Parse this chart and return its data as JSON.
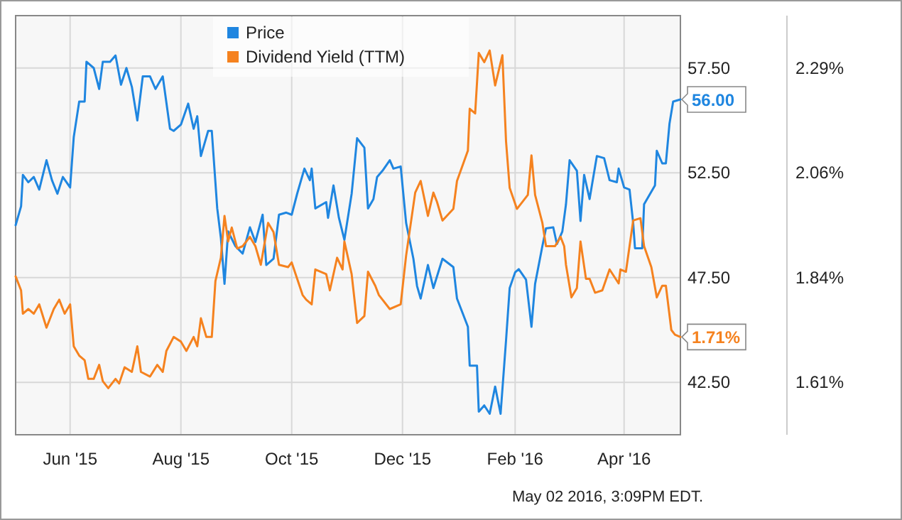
{
  "chart_data": {
    "type": "line",
    "xlim": [
      "2015-05-02",
      "2016-05-02"
    ],
    "xticks": [
      {
        "value": "2015-06-01",
        "label": "Jun '15"
      },
      {
        "value": "2015-08-01",
        "label": "Aug '15"
      },
      {
        "value": "2015-10-01",
        "label": "Oct '15"
      },
      {
        "value": "2015-12-01",
        "label": "Dec '15"
      },
      {
        "value": "2016-02-01",
        "label": "Feb '16"
      },
      {
        "value": "2016-04-01",
        "label": "Apr '16"
      }
    ],
    "ylim": [
      40,
      60
    ],
    "yticks": [
      {
        "value": 42.5,
        "label": "42.50"
      },
      {
        "value": 47.5,
        "label": "47.50"
      },
      {
        "value": 52.5,
        "label": "52.50"
      },
      {
        "value": 57.5,
        "label": "57.50"
      }
    ],
    "y2lim": [
      1.5,
      2.4
    ],
    "y2ticks": [
      {
        "value": 1.6125,
        "label": "1.61%"
      },
      {
        "value": 1.8375,
        "label": "1.84%"
      },
      {
        "value": 2.0625,
        "label": "2.06%"
      },
      {
        "value": 2.2875,
        "label": "2.29%"
      }
    ],
    "grid": true,
    "legend": "top",
    "annotations": [
      "May 02 2016, 3:09PM EDT."
    ],
    "series": [
      {
        "name": "Price",
        "color": "#1f86e0",
        "x": [
          "2015-05-02",
          "2015-05-05",
          "2015-05-06",
          "2015-05-09",
          "2015-05-12",
          "2015-05-15",
          "2015-05-19",
          "2015-05-22",
          "2015-05-25",
          "2015-05-28",
          "2015-06-01",
          "2015-06-03",
          "2015-06-06",
          "2015-06-09",
          "2015-06-10",
          "2015-06-14",
          "2015-06-17",
          "2015-06-19",
          "2015-06-23",
          "2015-06-26",
          "2015-06-29",
          "2015-07-02",
          "2015-07-05",
          "2015-07-08",
          "2015-07-11",
          "2015-07-15",
          "2015-07-18",
          "2015-07-22",
          "2015-07-26",
          "2015-07-28",
          "2015-08-01",
          "2015-08-05",
          "2015-08-08",
          "2015-08-10",
          "2015-08-12",
          "2015-08-16",
          "2015-08-18",
          "2015-08-21",
          "2015-08-23",
          "2015-08-25",
          "2015-08-27",
          "2015-08-31",
          "2015-09-04",
          "2015-09-08",
          "2015-09-11",
          "2015-09-15",
          "2015-09-17",
          "2015-09-21",
          "2015-09-24",
          "2015-09-28",
          "2015-10-01",
          "2015-10-04",
          "2015-10-08",
          "2015-10-11",
          "2015-10-12",
          "2015-10-14",
          "2015-10-20",
          "2015-10-21",
          "2015-10-24",
          "2015-10-27",
          "2015-10-30",
          "2015-11-03",
          "2015-11-06",
          "2015-11-10",
          "2015-11-12",
          "2015-11-15",
          "2015-11-17",
          "2015-11-20",
          "2015-11-24",
          "2015-11-26",
          "2015-11-30",
          "2015-12-03",
          "2015-12-07",
          "2015-12-09",
          "2015-12-11",
          "2015-12-15",
          "2015-12-18",
          "2015-12-23",
          "2015-12-29",
          "2015-12-31",
          "2016-01-06",
          "2016-01-07",
          "2016-01-11",
          "2016-01-12",
          "2016-01-15",
          "2016-01-18",
          "2016-01-21",
          "2016-01-24",
          "2016-01-27",
          "2016-01-29",
          "2016-02-01",
          "2016-02-03",
          "2016-02-07",
          "2016-02-10",
          "2016-02-12",
          "2016-02-16",
          "2016-02-18",
          "2016-02-22",
          "2016-02-24",
          "2016-02-27",
          "2016-02-29",
          "2016-03-02",
          "2016-03-06",
          "2016-03-08",
          "2016-03-10",
          "2016-03-13",
          "2016-03-17",
          "2016-03-21",
          "2016-03-24",
          "2016-03-28",
          "2016-03-29",
          "2016-04-01",
          "2016-04-04",
          "2016-04-06",
          "2016-04-07",
          "2016-04-11",
          "2016-04-12",
          "2016-04-18",
          "2016-04-19",
          "2016-04-22",
          "2016-04-24",
          "2016-04-26",
          "2016-04-28",
          "2016-05-02"
        ],
        "values": [
          50.0,
          50.9,
          52.4,
          52.05,
          52.3,
          51.7,
          53.1,
          52.15,
          51.5,
          52.3,
          51.8,
          54.2,
          55.9,
          55.9,
          57.8,
          57.5,
          56.5,
          57.8,
          57.8,
          58.1,
          56.7,
          57.5,
          56.6,
          55.0,
          57.1,
          57.1,
          56.5,
          57.1,
          54.6,
          54.5,
          54.8,
          55.8,
          54.6,
          55.2,
          53.3,
          54.5,
          54.5,
          50.8,
          49.4,
          47.2,
          49.7,
          49.0,
          48.65,
          49.9,
          49.2,
          50.5,
          48.1,
          48.4,
          50.5,
          50.6,
          50.5,
          51.5,
          52.7,
          52.15,
          52.7,
          50.8,
          51.1,
          50.35,
          51.9,
          50.35,
          49.3,
          51.5,
          54.15,
          53.7,
          50.8,
          51.25,
          52.3,
          52.6,
          53.1,
          52.7,
          52.8,
          50.1,
          48.4,
          47.1,
          46.5,
          48.1,
          47.0,
          48.4,
          48.0,
          46.5,
          45.15,
          43.3,
          43.3,
          41.1,
          41.4,
          41.0,
          42.3,
          41.0,
          44.5,
          47.0,
          47.75,
          47.9,
          47.4,
          45.15,
          47.2,
          49.0,
          49.85,
          49.9,
          49.1,
          49.7,
          51.0,
          53.1,
          52.6,
          50.2,
          52.4,
          51.25,
          53.3,
          53.2,
          52.15,
          52.05,
          52.7,
          51.8,
          51.7,
          50.1,
          48.9,
          48.9,
          51.0,
          51.9,
          53.55,
          52.95,
          52.95,
          54.85,
          55.9,
          56.0
        ],
        "value_labels": [
          null,
          null,
          null,
          null,
          null,
          null,
          null,
          null,
          null,
          null,
          null,
          null,
          null,
          null,
          null,
          null,
          null,
          null,
          null,
          null,
          null,
          null,
          null,
          null,
          null,
          null,
          null,
          null,
          null,
          null,
          null,
          null,
          null,
          null,
          null,
          null,
          null,
          null,
          null,
          null,
          null,
          null,
          null,
          null,
          null,
          null,
          null,
          null,
          null,
          null,
          null,
          null,
          null,
          null,
          null,
          null,
          null,
          null,
          null,
          null,
          null,
          null,
          null,
          null,
          null,
          null,
          null,
          null,
          null,
          null,
          null,
          null,
          null,
          null,
          null,
          null,
          null,
          null,
          null,
          null,
          null,
          null,
          null,
          null,
          null,
          null,
          null,
          null,
          null,
          null,
          null,
          null,
          null,
          null,
          null,
          null,
          null,
          null,
          null,
          null,
          null,
          null,
          null,
          null,
          null,
          null,
          null,
          null,
          null,
          null,
          null,
          null,
          null,
          null,
          null,
          null,
          null,
          null,
          null,
          null,
          null,
          null,
          null,
          "56.00"
        ]
      },
      {
        "name": "Dividend Yield (TTM)",
        "color": "#f5821f",
        "axis": "y2",
        "x": [
          "2015-05-02",
          "2015-05-05",
          "2015-05-06",
          "2015-05-09",
          "2015-05-12",
          "2015-05-15",
          "2015-05-19",
          "2015-05-23",
          "2015-05-26",
          "2015-05-29",
          "2015-06-01",
          "2015-06-03",
          "2015-06-06",
          "2015-06-09",
          "2015-06-11",
          "2015-06-14",
          "2015-06-17",
          "2015-06-19",
          "2015-06-22",
          "2015-06-26",
          "2015-06-28",
          "2015-07-01",
          "2015-07-05",
          "2015-07-08",
          "2015-07-10",
          "2015-07-15",
          "2015-07-19",
          "2015-07-22",
          "2015-07-24",
          "2015-07-28",
          "2015-08-01",
          "2015-08-04",
          "2015-08-08",
          "2015-08-10",
          "2015-08-12",
          "2015-08-15",
          "2015-08-18",
          "2015-08-20",
          "2015-08-23",
          "2015-08-25",
          "2015-08-27",
          "2015-08-29",
          "2015-09-01",
          "2015-09-04",
          "2015-09-08",
          "2015-09-11",
          "2015-09-14",
          "2015-09-18",
          "2015-09-21",
          "2015-09-24",
          "2015-09-29",
          "2015-10-01",
          "2015-10-07",
          "2015-10-09",
          "2015-10-12",
          "2015-10-14",
          "2015-10-20",
          "2015-10-22",
          "2015-10-26",
          "2015-10-29",
          "2015-10-30",
          "2015-11-03",
          "2015-11-06",
          "2015-11-10",
          "2015-11-12",
          "2015-11-16",
          "2015-11-18",
          "2015-11-24",
          "2015-11-30",
          "2015-12-03",
          "2015-12-08",
          "2015-12-11",
          "2015-12-15",
          "2015-12-18",
          "2015-12-20",
          "2015-12-23",
          "2015-12-29",
          "2015-12-31",
          "2016-01-06",
          "2016-01-07",
          "2016-01-10",
          "2016-01-12",
          "2016-01-15",
          "2016-01-18",
          "2016-01-21",
          "2016-01-25",
          "2016-01-27",
          "2016-01-29",
          "2016-02-02",
          "2016-02-08",
          "2016-02-10",
          "2016-02-12",
          "2016-02-16",
          "2016-02-18",
          "2016-02-23",
          "2016-02-26",
          "2016-02-28",
          "2016-02-29",
          "2016-03-03",
          "2016-03-06",
          "2016-03-08",
          "2016-03-11",
          "2016-03-13",
          "2016-03-16",
          "2016-03-20",
          "2016-03-24",
          "2016-03-29",
          "2016-03-30",
          "2016-04-02",
          "2016-04-06",
          "2016-04-10",
          "2016-04-12",
          "2016-04-16",
          "2016-04-19",
          "2016-04-22",
          "2016-04-24",
          "2016-04-27",
          "2016-04-29",
          "2016-05-02"
        ],
        "values": [
          1.84,
          1.81,
          1.76,
          1.77,
          1.76,
          1.78,
          1.73,
          1.77,
          1.79,
          1.76,
          1.78,
          1.69,
          1.67,
          1.66,
          1.62,
          1.62,
          1.65,
          1.615,
          1.6,
          1.62,
          1.61,
          1.645,
          1.635,
          1.69,
          1.635,
          1.625,
          1.65,
          1.635,
          1.68,
          1.71,
          1.7,
          1.68,
          1.71,
          1.69,
          1.75,
          1.71,
          1.71,
          1.83,
          1.88,
          1.97,
          1.915,
          1.945,
          1.9,
          1.905,
          1.925,
          1.905,
          1.865,
          1.955,
          1.935,
          1.865,
          1.86,
          1.87,
          1.8,
          1.79,
          1.78,
          1.855,
          1.845,
          1.81,
          1.88,
          1.855,
          1.915,
          1.845,
          1.74,
          1.755,
          1.85,
          1.82,
          1.8,
          1.77,
          1.78,
          1.885,
          2.02,
          2.045,
          1.97,
          2.02,
          2.0,
          1.96,
          1.985,
          2.045,
          2.11,
          2.2,
          2.19,
          2.32,
          2.3,
          2.325,
          2.25,
          2.315,
          2.13,
          2.03,
          1.985,
          2.015,
          2.1,
          2.015,
          1.955,
          1.905,
          1.905,
          1.925,
          1.905,
          1.865,
          1.795,
          1.815,
          1.915,
          1.835,
          1.835,
          1.805,
          1.81,
          1.855,
          1.825,
          1.855,
          1.85,
          1.96,
          1.965,
          1.905,
          1.86,
          1.795,
          1.82,
          1.82,
          1.725,
          1.715,
          1.71
        ],
        "value_labels": [
          null,
          null,
          null,
          null,
          null,
          null,
          null,
          null,
          null,
          null,
          null,
          null,
          null,
          null,
          null,
          null,
          null,
          null,
          null,
          null,
          null,
          null,
          null,
          null,
          null,
          null,
          null,
          null,
          null,
          null,
          null,
          null,
          null,
          null,
          null,
          null,
          null,
          null,
          null,
          null,
          null,
          null,
          null,
          null,
          null,
          null,
          null,
          null,
          null,
          null,
          null,
          null,
          null,
          null,
          null,
          null,
          null,
          null,
          null,
          null,
          null,
          null,
          null,
          null,
          null,
          null,
          null,
          null,
          null,
          null,
          null,
          null,
          null,
          null,
          null,
          null,
          null,
          null,
          null,
          null,
          null,
          null,
          null,
          null,
          null,
          null,
          null,
          null,
          null,
          null,
          null,
          null,
          null,
          null,
          null,
          null,
          null,
          null,
          null,
          null,
          null,
          null,
          null,
          null,
          null,
          null,
          null,
          null,
          null,
          null,
          null,
          null,
          null,
          null,
          null,
          null,
          null,
          null,
          "1.71%"
        ]
      }
    ]
  }
}
